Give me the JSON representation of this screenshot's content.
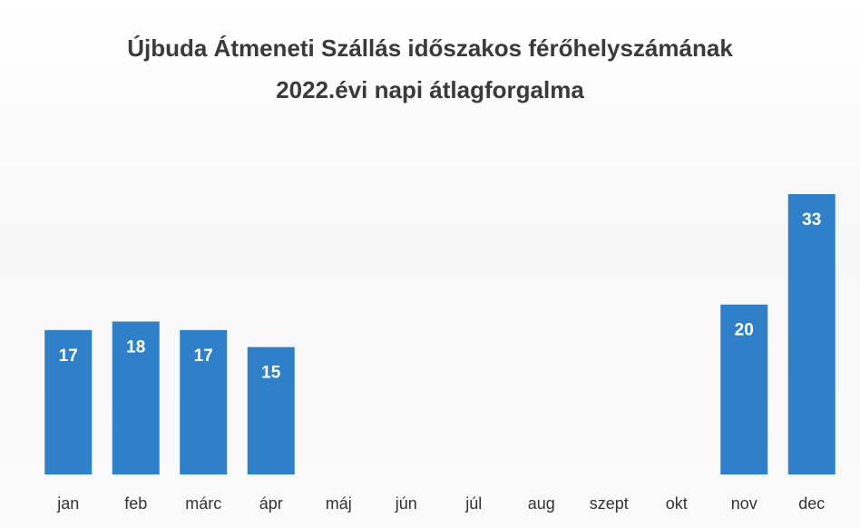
{
  "chart_data": {
    "type": "bar",
    "title": "Újbuda Átmeneti Szállás időszakos férőhelyszámának 2022.évi napi átlagforgalma",
    "categories": [
      "jan",
      "feb",
      "márc",
      "ápr",
      "máj",
      "jún",
      "júl",
      "aug",
      "szept",
      "okt",
      "nov",
      "dec"
    ],
    "values": [
      17,
      18,
      17,
      15,
      null,
      null,
      null,
      null,
      null,
      null,
      20,
      33
    ],
    "color": "#2f80c9"
  }
}
